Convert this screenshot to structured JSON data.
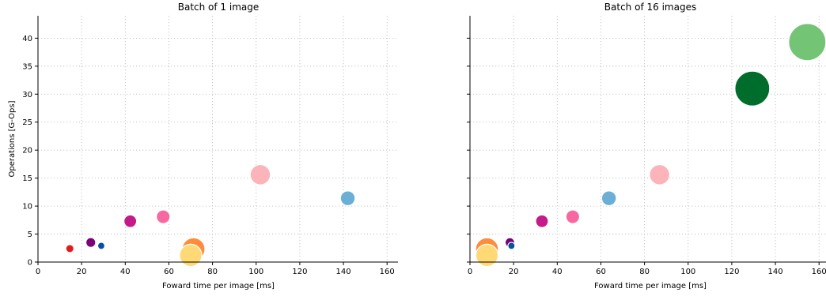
{
  "chart_data": [
    {
      "type": "scatter",
      "title": "Batch of 1 image",
      "xlabel": "Foward time per image [ms]",
      "ylabel": "Operations [G-Ops]",
      "xlim": [
        0,
        165
      ],
      "ylim": [
        0,
        44
      ],
      "xticks": [
        0,
        20,
        40,
        60,
        80,
        100,
        120,
        140,
        160
      ],
      "yticks": [
        0,
        5,
        10,
        15,
        20,
        25,
        30,
        35,
        40
      ],
      "grid": true,
      "points": [
        {
          "x": 14.6,
          "y": 2.4,
          "size": 5.1,
          "color": "#e31a1c"
        },
        {
          "x": 24.2,
          "y": 3.5,
          "size": 6.2,
          "color": "#7a0177"
        },
        {
          "x": 29.0,
          "y": 2.9,
          "size": 4.5,
          "color": "#08519c"
        },
        {
          "x": 42.3,
          "y": 7.3,
          "size": 8.0,
          "color": "#c51b8a"
        },
        {
          "x": 57.4,
          "y": 8.1,
          "size": 8.6,
          "color": "#f768a1"
        },
        {
          "x": 71.3,
          "y": 2.3,
          "size": 14.4,
          "color": "#fd8d3c"
        },
        {
          "x": 70.0,
          "y": 1.2,
          "size": 14.1,
          "color": "#fed976"
        },
        {
          "x": 101.9,
          "y": 15.6,
          "size": 12.8,
          "color": "#fbb4b9"
        },
        {
          "x": 142.0,
          "y": 11.4,
          "size": 9.3,
          "color": "#6baed6"
        }
      ]
    },
    {
      "type": "scatter",
      "title": "Batch of 16 images",
      "xlabel": "Foward time per image [ms]",
      "ylabel": "",
      "xlim": [
        0,
        165
      ],
      "ylim": [
        0,
        44
      ],
      "xticks": [
        0,
        20,
        40,
        60,
        80,
        100,
        120,
        140,
        160
      ],
      "yticks": [
        0,
        5,
        10,
        15,
        20,
        25,
        30,
        35,
        40
      ],
      "grid": true,
      "points": [
        {
          "x": 18.3,
          "y": 3.5,
          "size": 6.0,
          "color": "#7a0177"
        },
        {
          "x": 19.0,
          "y": 2.9,
          "size": 4.5,
          "color": "#08519c"
        },
        {
          "x": 7.8,
          "y": 2.3,
          "size": 14.4,
          "color": "#fd8d3c"
        },
        {
          "x": 7.8,
          "y": 1.2,
          "size": 14.1,
          "color": "#fed976"
        },
        {
          "x": 33.0,
          "y": 7.3,
          "size": 8.0,
          "color": "#c51b8a"
        },
        {
          "x": 47.1,
          "y": 8.1,
          "size": 8.6,
          "color": "#f768a1"
        },
        {
          "x": 63.7,
          "y": 11.4,
          "size": 9.3,
          "color": "#6baed6"
        },
        {
          "x": 86.9,
          "y": 15.6,
          "size": 12.8,
          "color": "#fbb4b9"
        },
        {
          "x": 129.4,
          "y": 31.0,
          "size": 22.0,
          "color": "#006d2c"
        },
        {
          "x": 154.6,
          "y": 39.3,
          "size": 23.5,
          "color": "#74c476"
        }
      ]
    }
  ]
}
